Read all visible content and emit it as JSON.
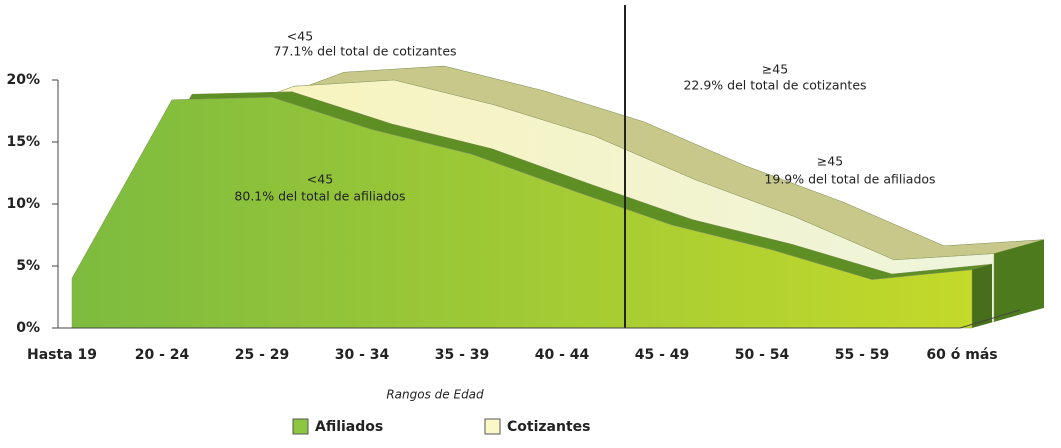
{
  "chart_data": {
    "type": "area3d",
    "categories": [
      "Hasta 19",
      "20 - 24",
      "25 - 29",
      "30 - 34",
      "35 - 39",
      "40 - 44",
      "45 - 49",
      "50 - 54",
      "55 - 59",
      "60 ó más"
    ],
    "series": [
      {
        "name": "Afiliados",
        "color": "#8dc63f",
        "values": [
          4,
          18.4,
          18.6,
          16,
          14,
          11.1,
          8.3,
          6.3,
          3.9,
          4.7
        ]
      },
      {
        "name": "Cotizantes",
        "color": "#fbf8c8",
        "values": [
          2,
          16,
          19,
          19.5,
          17.5,
          15,
          11.5,
          8.5,
          5,
          5.5
        ]
      }
    ],
    "ylim": [
      0,
      20
    ],
    "yticks": [
      {
        "value": 0,
        "label": "0%"
      },
      {
        "value": 5,
        "label": "5%"
      },
      {
        "value": 10,
        "label": "10%"
      },
      {
        "value": 15,
        "label": "15%"
      },
      {
        "value": 20,
        "label": "20%"
      }
    ],
    "xlabel": "Rangos de Edad",
    "annotations": [
      "<45",
      "77.1% del total de cotizantes",
      "≥45",
      "22.9% del total de cotizantes",
      "<45",
      "80.1% del total de afiliados",
      "≥45",
      "19.9% del total de afiliados"
    ]
  }
}
